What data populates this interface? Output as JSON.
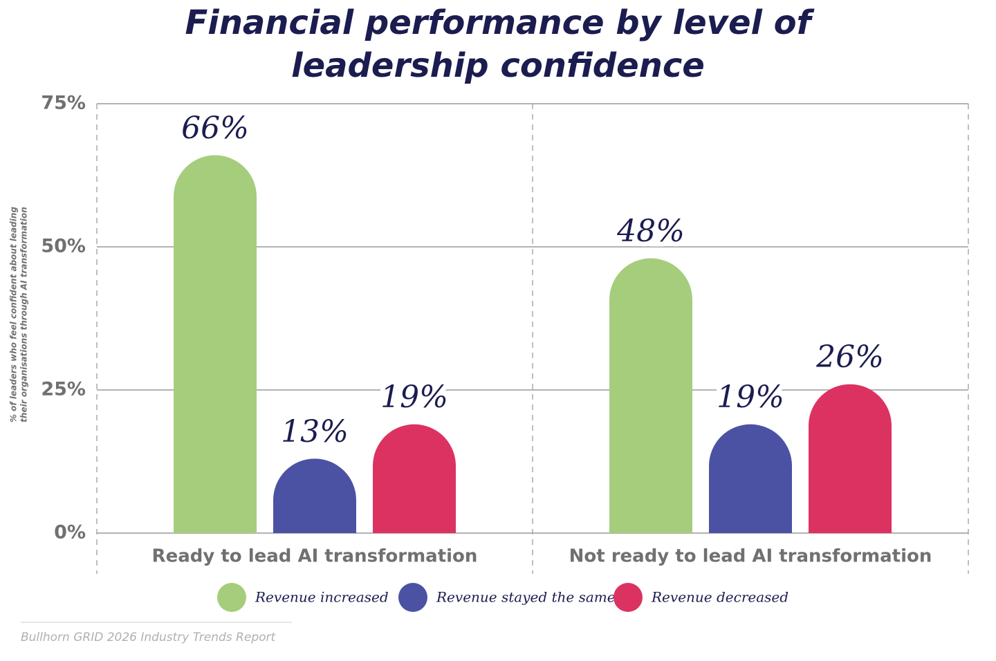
{
  "chart_data": {
    "type": "bar",
    "title": [
      "Financial performance by level of",
      "leadership confidence"
    ],
    "y_label": [
      "% of leaders who feel confident about leading",
      "their organisations through AI transformation"
    ],
    "categories": [
      "Ready to lead AI transformation",
      "Not ready to lead AI transformation"
    ],
    "series": [
      {
        "name": "Revenue increased",
        "color": "#a5cd7c",
        "values": [
          66,
          48
        ],
        "value_labels": [
          "66%",
          "48%"
        ]
      },
      {
        "name": "Revenue stayed the same",
        "color": "#4b52a3",
        "values": [
          13,
          19
        ],
        "value_labels": [
          "13%",
          "19%"
        ]
      },
      {
        "name": "Revenue decreased",
        "color": "#dc3262",
        "values": [
          19,
          26
        ],
        "value_labels": [
          "19%",
          "26%"
        ]
      }
    ],
    "ylim": [
      0,
      75
    ],
    "yticks": [
      {
        "value": 0,
        "label": "0%"
      },
      {
        "value": 25,
        "label": "25%"
      },
      {
        "value": 50,
        "label": "50%"
      },
      {
        "value": 75,
        "label": "75%"
      }
    ],
    "grid": true,
    "source": "Bullhorn GRID 2026 Industry Trends Report"
  }
}
